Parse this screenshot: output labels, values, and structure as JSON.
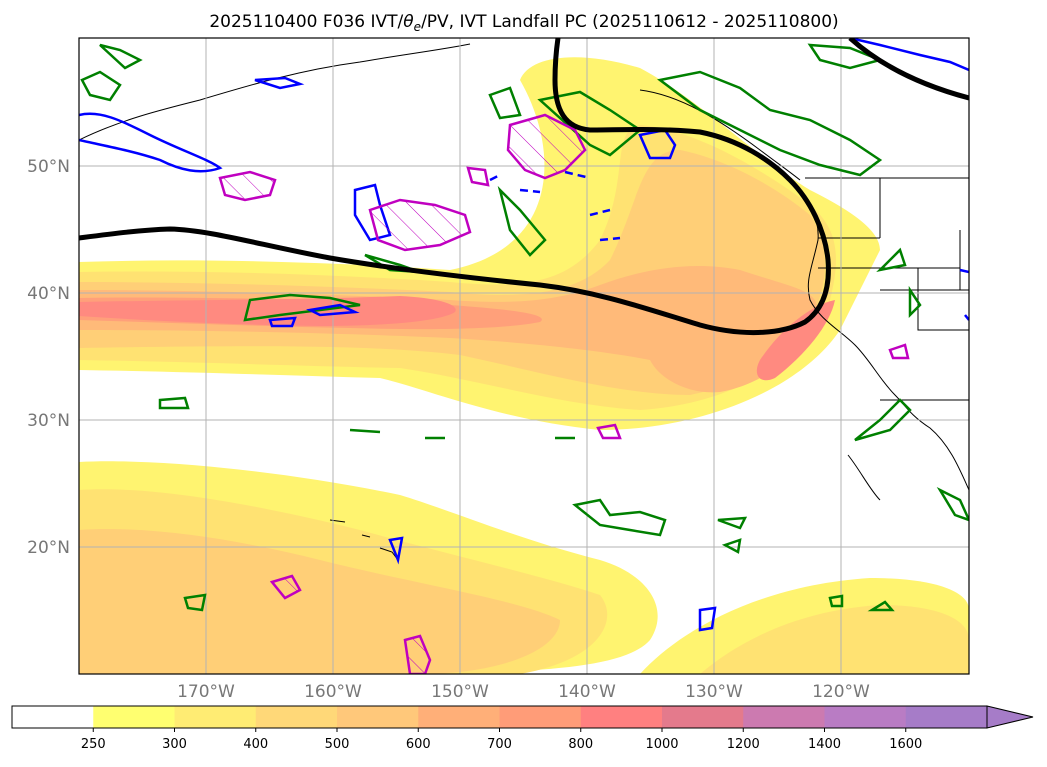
{
  "title": "2025110400 F036 IVT/θe/PV, IVT Landfall PC (2025110612 - 2025110800)",
  "title_parts": {
    "prefix": "2025110400 F036 IVT/",
    "theta": "θ",
    "theta_sub": "e",
    "suffix": "/PV, IVT Landfall PC (2025110612 - 2025110800)"
  },
  "map": {
    "lat_labels": [
      "50°N",
      "40°N",
      "30°N",
      "20°N"
    ],
    "lon_labels": [
      "170°W",
      "160°W",
      "150°W",
      "140°W",
      "130°W",
      "120°W"
    ],
    "colors": {
      "positive_contour": "#008000",
      "negative_contour": "#0000ff",
      "pv_contour": "#c000c0",
      "pc_contour": "#000000"
    }
  },
  "colorbar": {
    "levels": [
      "250",
      "300",
      "400",
      "500",
      "600",
      "700",
      "800",
      "1000",
      "1200",
      "1400",
      "1600"
    ],
    "colors": [
      "#ffffff",
      "#ffff70",
      "#ffec73",
      "#ffd878",
      "#ffc87a",
      "#ffaf78",
      "#ff9c78",
      "#ff8080",
      "#e47a8c",
      "#cc7ab0",
      "#b97cc4",
      "#a67cc8"
    ]
  }
}
